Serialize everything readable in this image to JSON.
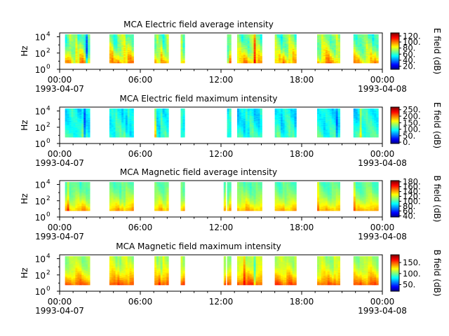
{
  "figure": {
    "background": "#ffffff"
  },
  "chart_data": [
    {
      "type": "heatmap",
      "title": "MCA  Electric field average intensity",
      "ylabel": "Hz",
      "ytick_labels": [
        "10",
        "10",
        "10"
      ],
      "ytick_exponents": [
        "0",
        "2",
        "4"
      ],
      "ylim": [
        1,
        30000
      ],
      "y_log_scale": true,
      "xlim_hours": [
        0,
        24
      ],
      "xtick_labels": [
        "00:00",
        "06:00",
        "12:00",
        "18:00",
        "00:00"
      ],
      "xdate_labels": [
        "1993-04-07",
        "",
        "",
        "",
        "1993-04-08"
      ],
      "colorbar_label": "E field (dB)",
      "colorbar_ticks": [
        "20.",
        "40.",
        "60.",
        "80.",
        "100.",
        "120."
      ],
      "colorbar_range": [
        10,
        130
      ],
      "colorbar_tick_values": [
        20,
        40,
        60,
        80,
        100,
        120
      ],
      "data_intervals_hours": [
        [
          0.4,
          2.25
        ],
        [
          3.7,
          5.5
        ],
        [
          7.05,
          8.1
        ],
        [
          9.0,
          9.3
        ],
        [
          12.45,
          12.75
        ],
        [
          13.2,
          15.05
        ],
        [
          16.0,
          17.6
        ],
        [
          19.15,
          20.85
        ],
        [
          21.85,
          23.7
        ]
      ],
      "freq_range_hz": [
        6,
        20000
      ],
      "intensity_base": 68,
      "intensity_low_freq_boost": 25,
      "intensity_variation": 14,
      "seed": 11
    },
    {
      "type": "heatmap",
      "title": "MCA  Electric field maximum intensity",
      "ylabel": "Hz",
      "ytick_labels": [
        "10",
        "10",
        "10"
      ],
      "ytick_exponents": [
        "0",
        "2",
        "4"
      ],
      "ylim": [
        1,
        30000
      ],
      "y_log_scale": true,
      "xlim_hours": [
        0,
        24
      ],
      "xtick_labels": [
        "00:00",
        "06:00",
        "12:00",
        "18:00",
        "00:00"
      ],
      "xdate_labels": [
        "1993-04-07",
        "",
        "",
        "",
        "1993-04-08"
      ],
      "colorbar_label": "E field (dB)",
      "colorbar_ticks": [
        "0.",
        "50.",
        "100.",
        "150.",
        "200.",
        "250."
      ],
      "colorbar_range": [
        -10,
        270
      ],
      "colorbar_tick_values": [
        0,
        50,
        100,
        150,
        200,
        250
      ],
      "data_intervals_hours": [
        [
          0.4,
          2.25
        ],
        [
          3.7,
          5.5
        ],
        [
          7.05,
          8.1
        ],
        [
          9.0,
          9.3
        ],
        [
          12.45,
          12.75
        ],
        [
          13.2,
          15.05
        ],
        [
          16.0,
          17.6
        ],
        [
          19.15,
          20.85
        ],
        [
          21.85,
          23.7
        ]
      ],
      "freq_range_hz": [
        6,
        20000
      ],
      "intensity_base": 95,
      "intensity_low_freq_boost": 15,
      "intensity_variation": 22,
      "seed": 23
    },
    {
      "type": "heatmap",
      "title": "MCA  Magnetic field average intensity",
      "ylabel": "Hz",
      "ytick_labels": [
        "10",
        "10",
        "10"
      ],
      "ytick_exponents": [
        "0",
        "2",
        "4"
      ],
      "ylim": [
        1,
        30000
      ],
      "y_log_scale": true,
      "xlim_hours": [
        0,
        24
      ],
      "xtick_labels": [
        "00:00",
        "06:00",
        "12:00",
        "18:00",
        "00:00"
      ],
      "xdate_labels": [
        "1993-04-07",
        "",
        "",
        "",
        "1993-04-08"
      ],
      "colorbar_label": "B field (dB)",
      "colorbar_ticks": [
        "40.",
        "60.",
        "80.",
        "100.",
        "120.",
        "140.",
        "160.",
        "180."
      ],
      "colorbar_range": [
        35,
        185
      ],
      "colorbar_tick_values": [
        40,
        60,
        80,
        100,
        120,
        140,
        160,
        180
      ],
      "data_intervals_hours": [
        [
          0.4,
          2.25
        ],
        [
          3.7,
          5.5
        ],
        [
          7.05,
          8.1
        ],
        [
          9.0,
          9.3
        ],
        [
          12.2,
          12.35
        ],
        [
          12.45,
          12.75
        ],
        [
          13.2,
          15.05
        ],
        [
          16.0,
          17.6
        ],
        [
          19.15,
          20.85
        ],
        [
          21.85,
          23.7
        ]
      ],
      "freq_range_hz": [
        6,
        20000
      ],
      "intensity_base": 105,
      "intensity_low_freq_boost": 35,
      "intensity_variation": 8,
      "seed": 37
    },
    {
      "type": "heatmap",
      "title": "MCA  Magnetic field maximum intensity",
      "ylabel": "Hz",
      "ytick_labels": [
        "10",
        "10",
        "10"
      ],
      "ytick_exponents": [
        "0",
        "2",
        "4"
      ],
      "ylim": [
        1,
        30000
      ],
      "y_log_scale": true,
      "xlim_hours": [
        0,
        24
      ],
      "xtick_labels": [
        "00:00",
        "06:00",
        "12:00",
        "18:00",
        "00:00"
      ],
      "xdate_labels": [
        "1993-04-07",
        "",
        "",
        "",
        "1993-04-08"
      ],
      "colorbar_label": "B field (dB)",
      "colorbar_ticks": [
        "50.",
        "100.",
        "150."
      ],
      "colorbar_range": [
        20,
        185
      ],
      "colorbar_tick_values": [
        50,
        100,
        150
      ],
      "data_intervals_hours": [
        [
          0.4,
          2.25
        ],
        [
          3.7,
          5.5
        ],
        [
          7.05,
          8.1
        ],
        [
          9.0,
          9.3
        ],
        [
          12.2,
          12.35
        ],
        [
          12.45,
          12.75
        ],
        [
          13.2,
          15.05
        ],
        [
          16.0,
          17.6
        ],
        [
          19.15,
          20.85
        ],
        [
          21.85,
          23.7
        ]
      ],
      "freq_range_hz": [
        6,
        20000
      ],
      "intensity_base": 110,
      "intensity_low_freq_boost": 40,
      "intensity_variation": 10,
      "seed": 53
    }
  ]
}
